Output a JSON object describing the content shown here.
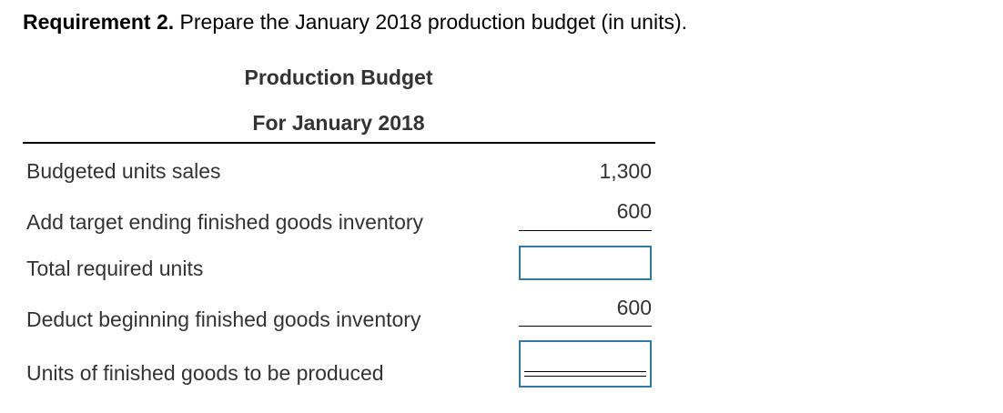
{
  "requirement": {
    "label": "Requirement 2.",
    "text": " Prepare the January 2018 production budget (in units)."
  },
  "budget": {
    "title": "Production Budget",
    "period": "For January 2018"
  },
  "rows": [
    {
      "label": "Budgeted units sales",
      "value": "1,300"
    },
    {
      "label": "Add target ending finished goods inventory",
      "value": "600"
    },
    {
      "label": "Total required units",
      "value": ""
    },
    {
      "label": "Deduct beginning finished goods inventory",
      "value": "600"
    },
    {
      "label": "Units of finished goods to be produced",
      "value": ""
    }
  ],
  "colors": {
    "input_border": "#2d7ba6",
    "rule": "#000000",
    "text": "#333333"
  }
}
